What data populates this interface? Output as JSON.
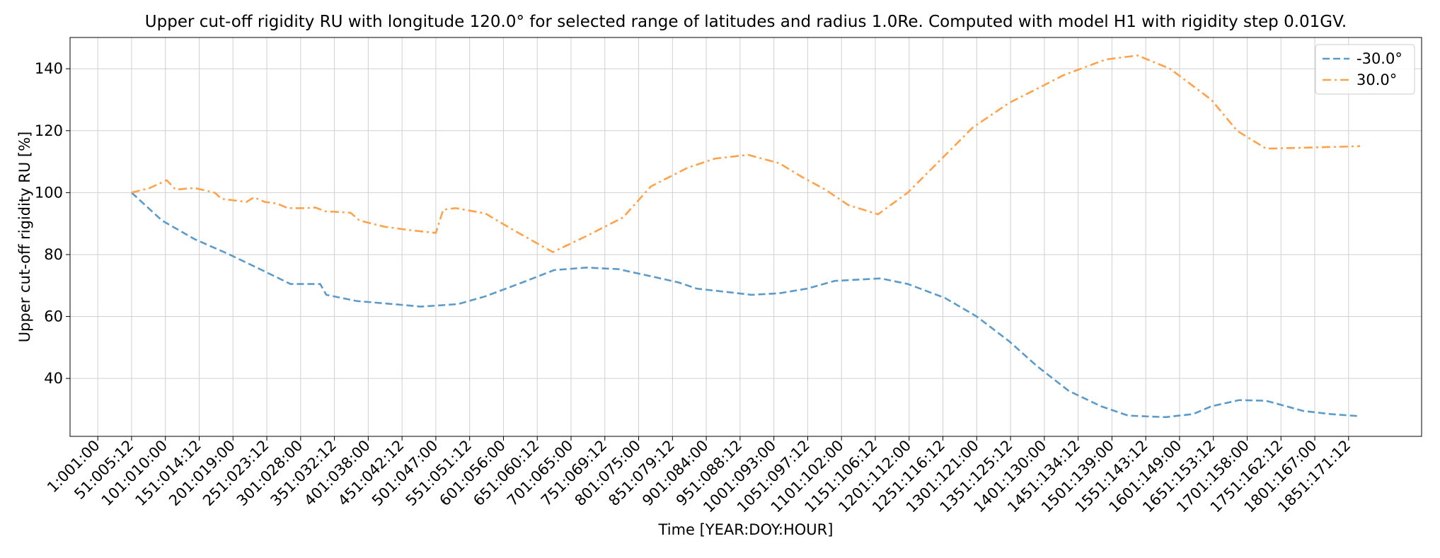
{
  "chart_data": {
    "type": "line",
    "title": "Upper cut-off rigidity RU with longitude 120.0° for selected range of latitudes and radius 1.0Re. Computed with model H1 with rigidity step 0.01GV.",
    "x_label": "Time [YEAR:DOY:HOUR]",
    "y_label": "Upper cut-off rigidity RU [%]",
    "xlim": [
      -40,
      1959
    ],
    "ylim": [
      21.3,
      150.1
    ],
    "xticks": [
      {
        "value": 1,
        "label": "1:001:00"
      },
      {
        "value": 51,
        "label": "51:005:12"
      },
      {
        "value": 101,
        "label": "101:010:00"
      },
      {
        "value": 151,
        "label": "151:014:12"
      },
      {
        "value": 201,
        "label": "201:019:00"
      },
      {
        "value": 251,
        "label": "251:023:12"
      },
      {
        "value": 301,
        "label": "301:028:00"
      },
      {
        "value": 351,
        "label": "351:032:12"
      },
      {
        "value": 401,
        "label": "401:038:00"
      },
      {
        "value": 451,
        "label": "451:042:12"
      },
      {
        "value": 501,
        "label": "501:047:00"
      },
      {
        "value": 551,
        "label": "551:051:12"
      },
      {
        "value": 601,
        "label": "601:056:00"
      },
      {
        "value": 651,
        "label": "651:060:12"
      },
      {
        "value": 701,
        "label": "701:065:00"
      },
      {
        "value": 751,
        "label": "751:069:12"
      },
      {
        "value": 801,
        "label": "801:075:00"
      },
      {
        "value": 851,
        "label": "851:079:12"
      },
      {
        "value": 901,
        "label": "901:084:00"
      },
      {
        "value": 951,
        "label": "951:088:12"
      },
      {
        "value": 1001,
        "label": "1001:093:00"
      },
      {
        "value": 1051,
        "label": "1051:097:12"
      },
      {
        "value": 1101,
        "label": "1101:102:00"
      },
      {
        "value": 1151,
        "label": "1151:106:12"
      },
      {
        "value": 1201,
        "label": "1201:112:00"
      },
      {
        "value": 1251,
        "label": "1251:116:12"
      },
      {
        "value": 1301,
        "label": "1301:121:00"
      },
      {
        "value": 1351,
        "label": "1351:125:12"
      },
      {
        "value": 1401,
        "label": "1401:130:00"
      },
      {
        "value": 1451,
        "label": "1451:134:12"
      },
      {
        "value": 1501,
        "label": "1501:139:00"
      },
      {
        "value": 1551,
        "label": "1551:143:12"
      },
      {
        "value": 1601,
        "label": "1601:149:00"
      },
      {
        "value": 1651,
        "label": "1651:153:12"
      },
      {
        "value": 1701,
        "label": "1701:158:00"
      },
      {
        "value": 1751,
        "label": "1751:162:12"
      },
      {
        "value": 1801,
        "label": "1801:167:00"
      },
      {
        "value": 1851,
        "label": "1851:171:12"
      }
    ],
    "yticks": [
      40,
      60,
      80,
      100,
      120,
      140
    ],
    "grid": true,
    "legend": "upper right",
    "series": [
      {
        "name": "-30.0°",
        "color": "#5b9bcc",
        "dash": "dashed",
        "x": [
          51,
          96,
          144,
          191,
          239,
          286,
          330,
          339,
          384,
          438,
          479,
          534,
          574,
          629,
          676,
          724,
          771,
          819,
          860,
          887,
          928,
          968,
          1009,
          1050,
          1091,
          1159,
          1199,
          1254,
          1301,
          1349,
          1390,
          1437,
          1485,
          1525,
          1580,
          1621,
          1648,
          1689,
          1729,
          1784,
          1824,
          1868
        ],
        "values": [
          100,
          91,
          85,
          80.5,
          75.5,
          70.5,
          70.5,
          67,
          65,
          64,
          63.2,
          64,
          66.5,
          71,
          75,
          75.8,
          75.3,
          73,
          71,
          69,
          68,
          67,
          67.5,
          69,
          71.5,
          72.3,
          70.5,
          66,
          60,
          52,
          44,
          36,
          31,
          28,
          27.5,
          28.5,
          31,
          33,
          32.8,
          29.5,
          28.5,
          27.8
        ]
      },
      {
        "name": "30.0°",
        "color": "#ffa24a",
        "dash": "dashdot",
        "x": [
          51,
          78,
          103,
          116,
          144,
          174,
          184,
          221,
          232,
          248,
          266,
          282,
          309,
          323,
          337,
          375,
          388,
          425,
          466,
          501,
          512,
          530,
          574,
          615,
          674,
          724,
          778,
          819,
          873,
          914,
          963,
          1009,
          1043,
          1077,
          1111,
          1155,
          1199,
          1254,
          1295,
          1349,
          1390,
          1430,
          1492,
          1539,
          1587,
          1648,
          1686,
          1729,
          1784,
          1868
        ],
        "values": [
          100,
          101.5,
          104,
          101,
          101.5,
          100,
          98,
          97,
          98.5,
          97,
          96.5,
          95,
          95,
          95.2,
          94,
          93.5,
          91,
          89,
          87.8,
          87,
          94.5,
          95,
          93.3,
          88,
          80.8,
          86,
          92,
          102,
          108,
          111,
          112.2,
          109.5,
          105,
          101,
          96,
          93,
          100,
          112,
          121,
          129,
          133.5,
          138,
          143,
          144.3,
          140,
          130,
          120,
          114.2,
          114.5,
          115
        ]
      }
    ]
  }
}
